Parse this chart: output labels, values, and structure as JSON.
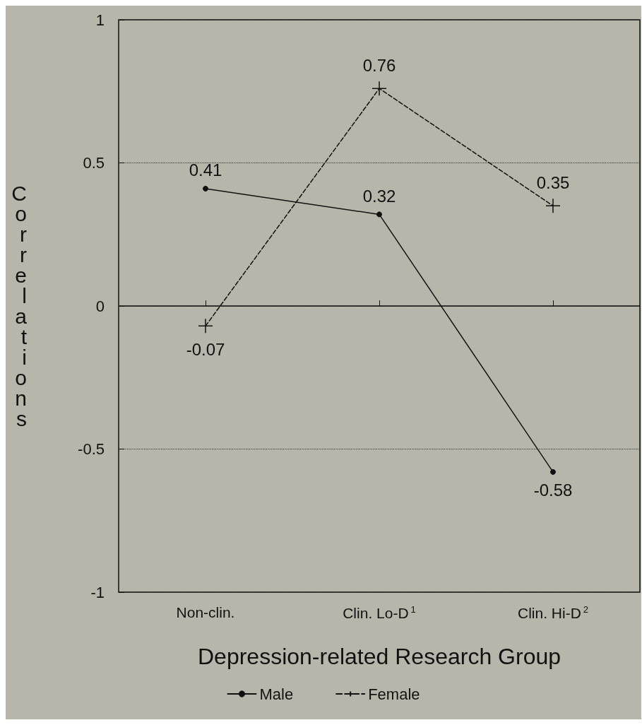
{
  "chart_data": {
    "type": "line",
    "xlabel": "Depression-related Research Group",
    "ylabel": "Correlations",
    "categories": [
      "Non-clin.",
      "Clin. Lo-D$^{1}$",
      "Clin. Hi-D$^{2}$"
    ],
    "series": [
      {
        "name": "Male",
        "color": "#111111",
        "values": [
          0.41,
          0.32,
          -0.58
        ],
        "marker": "circle",
        "line_style": "solid"
      },
      {
        "name": "Female",
        "color": "#111111",
        "values": [
          -0.07,
          0.76,
          0.35
        ],
        "marker": "cross",
        "line_style": "dashed"
      }
    ],
    "ylim": [
      -1,
      1
    ],
    "yticks": [
      -1,
      -0.5,
      0,
      0.5,
      1
    ],
    "grid": "y",
    "ref_lines": [
      {
        "axis": "y",
        "value": 0,
        "label": null,
        "line_style": "solid"
      }
    ],
    "data_labels": true,
    "legend": "bottom"
  }
}
